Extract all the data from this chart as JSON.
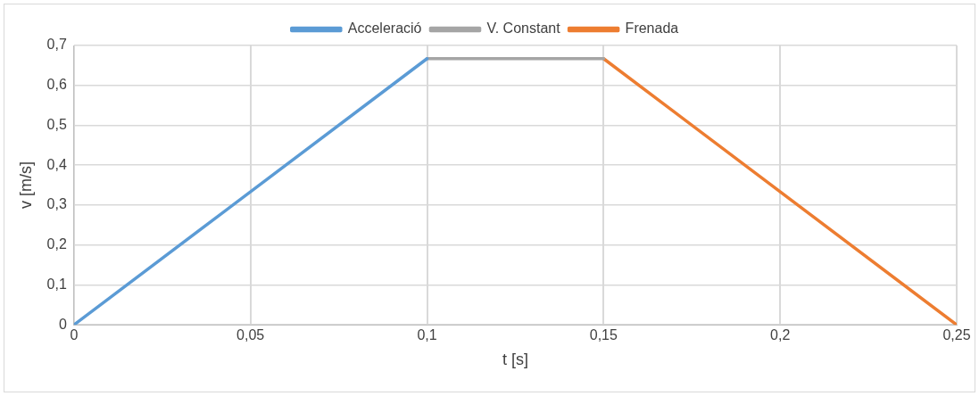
{
  "chart_data": {
    "type": "line",
    "xlabel": "t [s]",
    "ylabel": "v [m/s]",
    "series": [
      {
        "name": "Acceleració",
        "color": "#5b9bd5",
        "x": [
          0,
          0.1
        ],
        "values": [
          0,
          0.667
        ]
      },
      {
        "name": "V. Constant",
        "color": "#a5a5a5",
        "x": [
          0.1,
          0.15
        ],
        "values": [
          0.667,
          0.667
        ]
      },
      {
        "name": "Frenada",
        "color": "#ed7d31",
        "x": [
          0.15,
          0.25
        ],
        "values": [
          0.667,
          0
        ]
      }
    ],
    "xlim": [
      0,
      0.25
    ],
    "xticks": [
      0,
      {
        "value": 0.05,
        "label": "0,05"
      },
      {
        "value": 0.1,
        "label": "0,1"
      },
      {
        "value": 0.15,
        "label": "0,15"
      },
      {
        "value": 0.2,
        "label": "0,2"
      },
      {
        "value": 0.25,
        "label": "0,25"
      }
    ],
    "ylim": [
      0,
      0.7
    ],
    "yticks": [
      0,
      {
        "value": 0.1,
        "label": "0,1"
      },
      {
        "value": 0.2,
        "label": "0,2"
      },
      {
        "value": 0.3,
        "label": "0,3"
      },
      {
        "value": 0.4,
        "label": "0,4"
      },
      {
        "value": 0.5,
        "label": "0,5"
      },
      {
        "value": 0.6,
        "label": "0,6"
      },
      {
        "value": 0.7,
        "label": "0,7"
      }
    ],
    "grid": true,
    "legend": "top",
    "marker": "none",
    "line_style": "solid"
  }
}
